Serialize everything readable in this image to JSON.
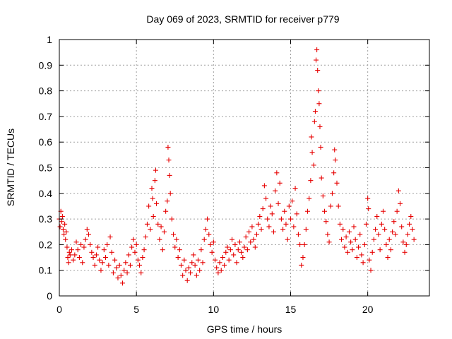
{
  "chart_data": {
    "type": "scatter",
    "title": "Day 069 of 2023, SRMTID for receiver p779",
    "xlabel": "GPS time / hours",
    "ylabel": "SRMTID / TECUs",
    "xlim": [
      0,
      24
    ],
    "ylim": [
      0,
      1
    ],
    "xticks": [
      0,
      5,
      10,
      15,
      20
    ],
    "xtick_labels": [
      "0",
      "5",
      "10",
      "15",
      "20"
    ],
    "yticks": [
      0,
      0.1,
      0.2,
      0.3,
      0.4,
      0.5,
      0.6,
      0.7,
      0.8,
      0.9,
      1
    ],
    "ytick_labels": [
      "0",
      "0.1",
      "0.2",
      "0.3",
      "0.4",
      "0.5",
      "0.6",
      "0.7",
      "0.8",
      "0.9",
      "1"
    ],
    "grid": true,
    "marker": "plus",
    "color": "#e60000",
    "series": [
      {
        "name": "SRMTID",
        "points": [
          [
            0.0,
            0.3
          ],
          [
            0.05,
            0.27
          ],
          [
            0.1,
            0.33
          ],
          [
            0.15,
            0.29
          ],
          [
            0.2,
            0.31
          ],
          [
            0.25,
            0.26
          ],
          [
            0.3,
            0.24
          ],
          [
            0.35,
            0.28
          ],
          [
            0.4,
            0.22
          ],
          [
            0.45,
            0.25
          ],
          [
            0.5,
            0.19
          ],
          [
            0.55,
            0.15
          ],
          [
            0.6,
            0.13
          ],
          [
            0.65,
            0.17
          ],
          [
            0.7,
            0.16
          ],
          [
            0.8,
            0.18
          ],
          [
            0.9,
            0.14
          ],
          [
            1.0,
            0.16
          ],
          [
            1.1,
            0.21
          ],
          [
            1.2,
            0.18
          ],
          [
            1.3,
            0.15
          ],
          [
            1.4,
            0.2
          ],
          [
            1.5,
            0.13
          ],
          [
            1.6,
            0.19
          ],
          [
            1.7,
            0.22
          ],
          [
            1.8,
            0.26
          ],
          [
            1.9,
            0.24
          ],
          [
            2.0,
            0.2
          ],
          [
            2.1,
            0.17
          ],
          [
            2.2,
            0.15
          ],
          [
            2.3,
            0.12
          ],
          [
            2.4,
            0.16
          ],
          [
            2.5,
            0.19
          ],
          [
            2.6,
            0.14
          ],
          [
            2.7,
            0.1
          ],
          [
            2.8,
            0.13
          ],
          [
            2.9,
            0.18
          ],
          [
            3.0,
            0.15
          ],
          [
            3.1,
            0.2
          ],
          [
            3.2,
            0.12
          ],
          [
            3.3,
            0.23
          ],
          [
            3.4,
            0.17
          ],
          [
            3.5,
            0.09
          ],
          [
            3.6,
            0.14
          ],
          [
            3.7,
            0.11
          ],
          [
            3.8,
            0.07
          ],
          [
            3.9,
            0.12
          ],
          [
            4.0,
            0.08
          ],
          [
            4.1,
            0.05
          ],
          [
            4.2,
            0.1
          ],
          [
            4.3,
            0.13
          ],
          [
            4.4,
            0.09
          ],
          [
            4.5,
            0.16
          ],
          [
            4.6,
            0.12
          ],
          [
            4.7,
            0.19
          ],
          [
            4.8,
            0.22
          ],
          [
            4.9,
            0.17
          ],
          [
            5.0,
            0.2
          ],
          [
            5.1,
            0.14
          ],
          [
            5.2,
            0.12
          ],
          [
            5.3,
            0.09
          ],
          [
            5.4,
            0.15
          ],
          [
            5.5,
            0.18
          ],
          [
            5.6,
            0.23
          ],
          [
            5.7,
            0.28
          ],
          [
            5.8,
            0.35
          ],
          [
            5.9,
            0.26
          ],
          [
            6.0,
            0.42
          ],
          [
            6.05,
            0.38
          ],
          [
            6.1,
            0.31
          ],
          [
            6.2,
            0.45
          ],
          [
            6.25,
            0.49
          ],
          [
            6.3,
            0.36
          ],
          [
            6.4,
            0.28
          ],
          [
            6.5,
            0.22
          ],
          [
            6.6,
            0.27
          ],
          [
            6.7,
            0.18
          ],
          [
            6.8,
            0.25
          ],
          [
            6.9,
            0.33
          ],
          [
            7.0,
            0.37
          ],
          [
            7.05,
            0.58
          ],
          [
            7.1,
            0.53
          ],
          [
            7.15,
            0.47
          ],
          [
            7.2,
            0.4
          ],
          [
            7.3,
            0.3
          ],
          [
            7.4,
            0.24
          ],
          [
            7.5,
            0.19
          ],
          [
            7.6,
            0.22
          ],
          [
            7.7,
            0.15
          ],
          [
            7.8,
            0.18
          ],
          [
            7.9,
            0.12
          ],
          [
            8.0,
            0.08
          ],
          [
            8.1,
            0.14
          ],
          [
            8.2,
            0.1
          ],
          [
            8.3,
            0.06
          ],
          [
            8.4,
            0.11
          ],
          [
            8.5,
            0.09
          ],
          [
            8.6,
            0.13
          ],
          [
            8.7,
            0.16
          ],
          [
            8.8,
            0.12
          ],
          [
            8.9,
            0.08
          ],
          [
            9.0,
            0.14
          ],
          [
            9.1,
            0.1
          ],
          [
            9.2,
            0.18
          ],
          [
            9.3,
            0.13
          ],
          [
            9.4,
            0.22
          ],
          [
            9.5,
            0.26
          ],
          [
            9.6,
            0.3
          ],
          [
            9.7,
            0.24
          ],
          [
            9.8,
            0.2
          ],
          [
            9.9,
            0.17
          ],
          [
            10.0,
            0.21
          ],
          [
            10.1,
            0.14
          ],
          [
            10.2,
            0.11
          ],
          [
            10.3,
            0.09
          ],
          [
            10.4,
            0.13
          ],
          [
            10.5,
            0.1
          ],
          [
            10.6,
            0.15
          ],
          [
            10.7,
            0.12
          ],
          [
            10.8,
            0.17
          ],
          [
            10.9,
            0.19
          ],
          [
            11.0,
            0.14
          ],
          [
            11.1,
            0.18
          ],
          [
            11.2,
            0.22
          ],
          [
            11.3,
            0.16
          ],
          [
            11.4,
            0.2
          ],
          [
            11.5,
            0.13
          ],
          [
            11.6,
            0.18
          ],
          [
            11.7,
            0.21
          ],
          [
            11.8,
            0.17
          ],
          [
            11.9,
            0.15
          ],
          [
            12.0,
            0.19
          ],
          [
            12.1,
            0.23
          ],
          [
            12.2,
            0.18
          ],
          [
            12.3,
            0.25
          ],
          [
            12.4,
            0.21
          ],
          [
            12.5,
            0.27
          ],
          [
            12.6,
            0.22
          ],
          [
            12.7,
            0.19
          ],
          [
            12.8,
            0.24
          ],
          [
            12.9,
            0.28
          ],
          [
            13.0,
            0.31
          ],
          [
            13.1,
            0.26
          ],
          [
            13.2,
            0.34
          ],
          [
            13.3,
            0.43
          ],
          [
            13.4,
            0.38
          ],
          [
            13.5,
            0.3
          ],
          [
            13.6,
            0.27
          ],
          [
            13.7,
            0.35
          ],
          [
            13.8,
            0.32
          ],
          [
            13.9,
            0.25
          ],
          [
            14.0,
            0.41
          ],
          [
            14.1,
            0.48
          ],
          [
            14.2,
            0.36
          ],
          [
            14.3,
            0.44
          ],
          [
            14.4,
            0.3
          ],
          [
            14.5,
            0.26
          ],
          [
            14.6,
            0.33
          ],
          [
            14.7,
            0.28
          ],
          [
            14.8,
            0.22
          ],
          [
            14.9,
            0.35
          ],
          [
            15.0,
            0.3
          ],
          [
            15.1,
            0.37
          ],
          [
            15.2,
            0.27
          ],
          [
            15.3,
            0.42
          ],
          [
            15.4,
            0.32
          ],
          [
            15.5,
            0.24
          ],
          [
            15.6,
            0.2
          ],
          [
            15.7,
            0.12
          ],
          [
            15.8,
            0.15
          ],
          [
            15.9,
            0.2
          ],
          [
            16.0,
            0.26
          ],
          [
            16.1,
            0.33
          ],
          [
            16.2,
            0.38
          ],
          [
            16.3,
            0.45
          ],
          [
            16.35,
            0.62
          ],
          [
            16.4,
            0.56
          ],
          [
            16.5,
            0.51
          ],
          [
            16.55,
            0.68
          ],
          [
            16.6,
            0.72
          ],
          [
            16.65,
            0.92
          ],
          [
            16.7,
            0.96
          ],
          [
            16.75,
            0.88
          ],
          [
            16.8,
            0.8
          ],
          [
            16.85,
            0.75
          ],
          [
            16.9,
            0.66
          ],
          [
            16.95,
            0.58
          ],
          [
            17.0,
            0.46
          ],
          [
            17.1,
            0.39
          ],
          [
            17.2,
            0.33
          ],
          [
            17.3,
            0.29
          ],
          [
            17.4,
            0.24
          ],
          [
            17.5,
            0.21
          ],
          [
            17.6,
            0.35
          ],
          [
            17.7,
            0.4
          ],
          [
            17.8,
            0.48
          ],
          [
            17.85,
            0.57
          ],
          [
            17.9,
            0.53
          ],
          [
            18.0,
            0.44
          ],
          [
            18.1,
            0.35
          ],
          [
            18.2,
            0.28
          ],
          [
            18.3,
            0.22
          ],
          [
            18.4,
            0.26
          ],
          [
            18.5,
            0.19
          ],
          [
            18.6,
            0.23
          ],
          [
            18.7,
            0.17
          ],
          [
            18.8,
            0.25
          ],
          [
            18.9,
            0.21
          ],
          [
            19.0,
            0.18
          ],
          [
            19.1,
            0.27
          ],
          [
            19.2,
            0.22
          ],
          [
            19.3,
            0.15
          ],
          [
            19.4,
            0.19
          ],
          [
            19.5,
            0.24
          ],
          [
            19.6,
            0.16
          ],
          [
            19.7,
            0.13
          ],
          [
            19.8,
            0.2
          ],
          [
            19.9,
            0.28
          ],
          [
            20.0,
            0.38
          ],
          [
            20.05,
            0.34
          ],
          [
            20.1,
            0.14
          ],
          [
            20.2,
            0.1
          ],
          [
            20.3,
            0.17
          ],
          [
            20.4,
            0.22
          ],
          [
            20.5,
            0.26
          ],
          [
            20.6,
            0.31
          ],
          [
            20.7,
            0.24
          ],
          [
            20.8,
            0.18
          ],
          [
            20.9,
            0.28
          ],
          [
            21.0,
            0.33
          ],
          [
            21.1,
            0.26
          ],
          [
            21.2,
            0.2
          ],
          [
            21.3,
            0.15
          ],
          [
            21.4,
            0.22
          ],
          [
            21.5,
            0.18
          ],
          [
            21.6,
            0.25
          ],
          [
            21.7,
            0.29
          ],
          [
            21.8,
            0.24
          ],
          [
            21.9,
            0.33
          ],
          [
            22.0,
            0.41
          ],
          [
            22.1,
            0.36
          ],
          [
            22.2,
            0.27
          ],
          [
            22.3,
            0.21
          ],
          [
            22.4,
            0.17
          ],
          [
            22.5,
            0.2
          ],
          [
            22.6,
            0.24
          ],
          [
            22.7,
            0.28
          ],
          [
            22.8,
            0.31
          ],
          [
            22.9,
            0.26
          ],
          [
            23.0,
            0.22
          ]
        ]
      }
    ]
  }
}
